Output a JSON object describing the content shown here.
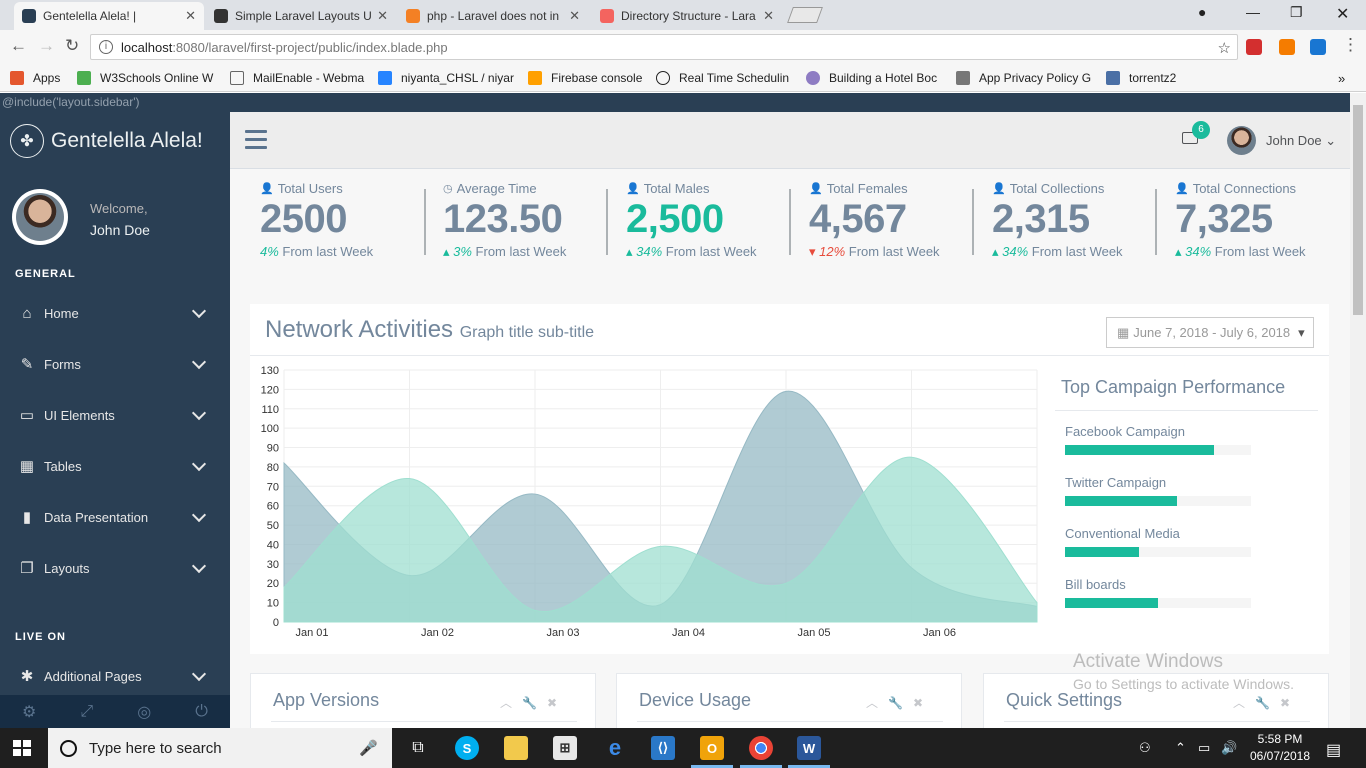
{
  "browser": {
    "tabs": [
      {
        "label": "Gentelella Alela! |",
        "color": "#2a3f54"
      },
      {
        "label": "Simple Laravel Layouts U",
        "color": "#333333"
      },
      {
        "label": "php - Laravel does not in",
        "color": "#f48024"
      },
      {
        "label": "Directory Structure - Lara",
        "color": "#f4645f"
      }
    ],
    "url_host": "localhost",
    "url_path": ":8080/laravel/first-project/public/index.blade.php",
    "bookmarks": [
      {
        "label": "Apps",
        "color": "#e4572e"
      },
      {
        "label": "W3Schools Online W",
        "color": "#4caf50"
      },
      {
        "label": "MailEnable - Webma",
        "color": "#666666"
      },
      {
        "label": "niyanta_CHSL / niyar",
        "color": "#2684ff"
      },
      {
        "label": "Firebase console",
        "color": "#ffa000"
      },
      {
        "label": "Real Time Schedulin",
        "color": "#222222"
      },
      {
        "label": "Building a Hotel Boc",
        "color": "#8e7cc3"
      },
      {
        "label": "App Privacy Policy G",
        "color": "#777777"
      },
      {
        "label": "torrentz2",
        "color": "#4a6fa5"
      }
    ]
  },
  "page": {
    "include_text": "@include('layout.sidebar')",
    "brand": "Gentelella Alela!",
    "welcome": "Welcome,",
    "user_name": "John Doe",
    "section_general": "GENERAL",
    "section_live": "LIVE ON",
    "menu": [
      {
        "label": "Home",
        "icon": "home-icon",
        "glyph": "⌂"
      },
      {
        "label": "Forms",
        "icon": "edit-icon",
        "glyph": "✎"
      },
      {
        "label": "UI Elements",
        "icon": "desktop-icon",
        "glyph": "▭"
      },
      {
        "label": "Tables",
        "icon": "table-icon",
        "glyph": "▦"
      },
      {
        "label": "Data Presentation",
        "icon": "bar-chart-icon",
        "glyph": "▮"
      },
      {
        "label": "Layouts",
        "icon": "clone-icon",
        "glyph": "❐"
      },
      {
        "label": "Additional Pages",
        "icon": "bug-icon",
        "glyph": "✱"
      }
    ],
    "footer_icons": [
      "gear-icon",
      "fullscreen-icon",
      "eye-slash-icon",
      "power-icon"
    ],
    "mail_count": "6",
    "nav_user": "John Doe",
    "tiles": [
      {
        "label": "Total Users",
        "icon": "user-icon",
        "value": "2500",
        "pct": "4%",
        "suffix": " From last Week",
        "trend": "none",
        "highlight": false
      },
      {
        "label": "Average Time",
        "icon": "clock-icon",
        "value": "123.50",
        "pct": "3%",
        "suffix": " From last Week",
        "trend": "up",
        "highlight": false
      },
      {
        "label": "Total Males",
        "icon": "user-icon",
        "value": "2,500",
        "pct": "34%",
        "suffix": " From last Week",
        "trend": "up",
        "highlight": true
      },
      {
        "label": "Total Females",
        "icon": "user-icon",
        "value": "4,567",
        "pct": "12%",
        "suffix": " From last Week",
        "trend": "down",
        "highlight": false
      },
      {
        "label": "Total Collections",
        "icon": "user-icon",
        "value": "2,315",
        "pct": "34%",
        "suffix": " From last Week",
        "trend": "up",
        "highlight": false
      },
      {
        "label": "Total Connections",
        "icon": "user-icon",
        "value": "7,325",
        "pct": "34%",
        "suffix": " From last Week",
        "trend": "up",
        "highlight": false
      }
    ],
    "network": {
      "title": "Network Activities",
      "subtitle": "Graph title sub-title",
      "date_range": "June 7, 2018 - July 6, 2018"
    },
    "campaign": {
      "title": "Top Campaign Performance",
      "items": [
        {
          "label": "Facebook Campaign",
          "progress": 0.8
        },
        {
          "label": "Twitter Campaign",
          "progress": 0.6
        },
        {
          "label": "Conventional Media",
          "progress": 0.4
        },
        {
          "label": "Bill boards",
          "progress": 0.5
        }
      ]
    },
    "bottom_panels": [
      "App Versions",
      "Device Usage",
      "Quick Settings"
    ],
    "watermark_title": "Activate Windows",
    "watermark_sub": "Go to Settings to activate Windows."
  },
  "taskbar": {
    "search_placeholder": "Type here to search",
    "time": "5:58 PM",
    "date": "06/07/2018"
  },
  "chart_data": {
    "type": "area",
    "x": [
      "Jan 01",
      "Jan 02",
      "Jan 03",
      "Jan 04",
      "Jan 05",
      "Jan 06",
      "Jan 07"
    ],
    "xlabels": [
      "Jan 01",
      "Jan 02",
      "Jan 03",
      "Jan 04",
      "Jan 05",
      "Jan 06"
    ],
    "ylim": [
      0,
      130
    ],
    "yticks": [
      0,
      10,
      20,
      30,
      40,
      50,
      60,
      70,
      80,
      90,
      100,
      110,
      120,
      130
    ],
    "grid": true,
    "series": [
      {
        "color": "#96b9c4",
        "points": [
          [
            0,
            82
          ],
          [
            1,
            24
          ],
          [
            2,
            66
          ],
          [
            3,
            9
          ],
          [
            4,
            119
          ],
          [
            5,
            28
          ],
          [
            6,
            8
          ]
        ]
      },
      {
        "color": "#9fdfd0",
        "points": [
          [
            0,
            18
          ],
          [
            1,
            74
          ],
          [
            2,
            6
          ],
          [
            3,
            39
          ],
          [
            4,
            20
          ],
          [
            5,
            85
          ],
          [
            6,
            10
          ]
        ]
      }
    ]
  }
}
